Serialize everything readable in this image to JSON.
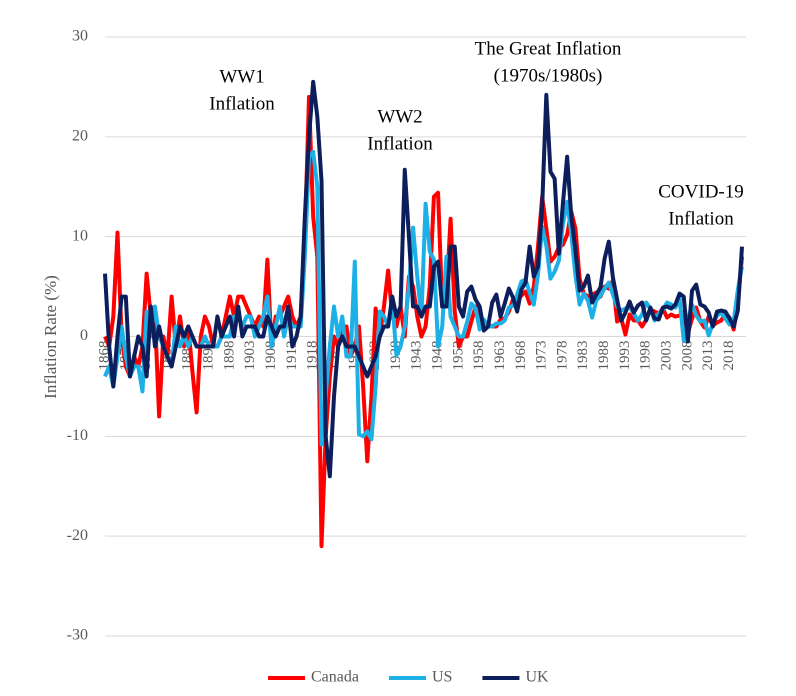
{
  "chart_data": {
    "type": "line",
    "y_label": "Inflation Rate (%)",
    "annotations": [
      [
        "WW1",
        "Inflation"
      ],
      [
        "WW2",
        "Inflation"
      ],
      [
        "The Great Inflation",
        "(1970s/1980s)"
      ],
      [
        "COVID-19",
        "Inflation"
      ]
    ],
    "x": [
      1868,
      1869,
      1870,
      1871,
      1872,
      1873,
      1874,
      1875,
      1876,
      1877,
      1878,
      1879,
      1880,
      1881,
      1882,
      1883,
      1884,
      1885,
      1886,
      1887,
      1888,
      1889,
      1890,
      1891,
      1892,
      1893,
      1894,
      1895,
      1896,
      1897,
      1898,
      1899,
      1900,
      1901,
      1902,
      1903,
      1904,
      1905,
      1906,
      1907,
      1908,
      1909,
      1910,
      1911,
      1912,
      1913,
      1914,
      1915,
      1916,
      1917,
      1918,
      1919,
      1920,
      1921,
      1922,
      1923,
      1924,
      1925,
      1926,
      1927,
      1928,
      1929,
      1930,
      1931,
      1932,
      1933,
      1934,
      1935,
      1936,
      1937,
      1938,
      1939,
      1940,
      1941,
      1942,
      1943,
      1944,
      1945,
      1946,
      1947,
      1948,
      1949,
      1950,
      1951,
      1952,
      1953,
      1954,
      1955,
      1956,
      1957,
      1958,
      1959,
      1960,
      1961,
      1962,
      1963,
      1964,
      1965,
      1966,
      1967,
      1968,
      1969,
      1970,
      1971,
      1972,
      1973,
      1974,
      1975,
      1976,
      1977,
      1978,
      1979,
      1980,
      1981,
      1982,
      1983,
      1984,
      1985,
      1986,
      1987,
      1988,
      1989,
      1990,
      1991,
      1992,
      1993,
      1994,
      1995,
      1996,
      1997,
      1998,
      1999,
      2000,
      2001,
      2002,
      2003,
      2004,
      2005,
      2006,
      2007,
      2008,
      2009,
      2010,
      2011,
      2012,
      2013,
      2014,
      2015,
      2016,
      2017,
      2018,
      2019,
      2020,
      2021
    ],
    "series": [
      {
        "name": "Canada",
        "color": "#ff0000",
        "values": [
          0,
          -1,
          2,
          10.4,
          0,
          -3,
          -4,
          -2,
          -3,
          -1,
          6.3,
          2,
          2,
          -8,
          0,
          -2,
          4,
          -1,
          2,
          -1,
          1,
          -3.5,
          -7.6,
          0,
          2,
          1,
          -1,
          -1,
          0,
          2,
          4,
          2,
          4,
          4,
          3,
          2,
          1,
          2,
          1,
          7.7,
          -1,
          2,
          2,
          3,
          4,
          2,
          1,
          2,
          10,
          24,
          12,
          8,
          -21,
          -10,
          -4,
          0,
          -1,
          1,
          1,
          -2,
          -1,
          1,
          -5,
          -12.5,
          -6,
          2.8,
          0,
          3,
          6.6,
          2,
          1,
          3,
          0,
          6,
          5,
          2,
          0,
          1,
          5,
          14,
          14.4,
          3,
          4,
          11.8,
          2.5,
          -1,
          0,
          0,
          1.5,
          3,
          2.5,
          1,
          1.2,
          1,
          1,
          1.7,
          1.8,
          2.5,
          3.7,
          3.6,
          4.1,
          4.5,
          3.3,
          5,
          9,
          14,
          10.8,
          7.5,
          8,
          8.9,
          9.2,
          10.2,
          12.5,
          10.8,
          5.8,
          4.3,
          4,
          4.2,
          4.4,
          4,
          5,
          4.8,
          5.6,
          1.5,
          1.8,
          0.2,
          2.2,
          1.6,
          1.6,
          1,
          1.7,
          2.7,
          2.5,
          2.3,
          2.8,
          1.9,
          2.2,
          2,
          2.1,
          2.4,
          0.3,
          1.8,
          2.9,
          1.5,
          0.9,
          2,
          1.1,
          1.4,
          1.6,
          2.3,
          1.9,
          0.7,
          3.4,
          8
        ]
      },
      {
        "name": "US",
        "color": "#1cb0e6",
        "values": [
          -4,
          -3,
          -5,
          -2,
          1,
          -2,
          -4,
          -3,
          -3,
          -5.5,
          2.5,
          0,
          3,
          0,
          -1,
          -2,
          -3,
          1,
          -1,
          0,
          -1,
          0,
          -1,
          -1,
          0,
          -1,
          -1,
          -1,
          0,
          0,
          0,
          2,
          2,
          1,
          2,
          2,
          0,
          1,
          2,
          4,
          -1,
          1,
          3,
          0,
          2,
          1,
          1,
          1,
          8,
          18,
          18.5,
          15,
          -10.8,
          -6,
          -1,
          3,
          0,
          2,
          -2,
          -2,
          7.5,
          -9.8,
          -10,
          -9.5,
          -10.3,
          -5,
          2.5,
          2,
          1,
          3.6,
          -1.9,
          -1,
          1,
          5,
          10.9,
          6,
          2,
          13.3,
          8.5,
          7.7,
          -1,
          1,
          8,
          2,
          1,
          0,
          0,
          1.5,
          3.3,
          2.8,
          0.7,
          1.7,
          1,
          1,
          1.3,
          1.3,
          1.6,
          2.9,
          3.1,
          4.2,
          5.5,
          5.7,
          4.4,
          3.2,
          6.2,
          11,
          9.1,
          5.8,
          6.5,
          7.6,
          11.3,
          13.5,
          10.3,
          6.1,
          3.2,
          4.3,
          3.6,
          1.9,
          3.6,
          4.1,
          4.8,
          5.4,
          4.2,
          3,
          2.6,
          2.8,
          3,
          2.3,
          1.6,
          2.2,
          3.4,
          2.8,
          1.6,
          2.3,
          2.7,
          3.4,
          3.2,
          2.9,
          3.8,
          -0.4,
          1.6,
          3.2,
          2.1,
          1.5,
          1.6,
          0.1,
          1.3,
          2.1,
          2.4,
          1.8,
          1.2,
          1.5,
          4.7,
          7
        ]
      },
      {
        "name": "UK",
        "color": "#0c1f5c",
        "values": [
          6.3,
          -1,
          -5,
          0,
          4,
          4,
          -4,
          -2,
          0,
          -1,
          -4,
          3,
          -1,
          1,
          -1,
          -2,
          -3,
          -1,
          1,
          0,
          1,
          0,
          -1,
          -1,
          -1,
          -1,
          -1,
          2,
          0,
          1,
          2,
          0,
          3,
          0,
          1,
          1,
          1,
          0,
          0,
          2,
          1,
          0,
          1,
          1,
          3,
          -1,
          0,
          2,
          12,
          20,
          25.5,
          22,
          15.6,
          -10,
          -14,
          -6,
          -1,
          0,
          -1,
          -1,
          -1,
          -2,
          -3,
          -4,
          -3,
          -2,
          0,
          1,
          1,
          4,
          2,
          3,
          16.7,
          10,
          3,
          3,
          2,
          3,
          3,
          7,
          7.5,
          3,
          3,
          9,
          9,
          3,
          2,
          4.5,
          5,
          3.7,
          3,
          0.6,
          1,
          3.4,
          4.2,
          2,
          3.3,
          4.8,
          3.9,
          2.5,
          4.7,
          5.4,
          9,
          6,
          7,
          13,
          24.2,
          16.5,
          15.8,
          8.3,
          13.4,
          18,
          12,
          8.6,
          4.6,
          5,
          6.1,
          3.4,
          4.2,
          4.9,
          7.8,
          9.5,
          5.9,
          3.7,
          1.6,
          2.4,
          3.5,
          2.4,
          3.1,
          3.4,
          1.6,
          2.9,
          1.8,
          1.7,
          2.9,
          3,
          2.8,
          3.2,
          4.3,
          4,
          -0.5,
          4.6,
          5.2,
          3.2,
          3,
          2.4,
          1,
          2.5,
          2.6,
          2.5,
          1.8,
          1,
          2.6,
          9
        ]
      }
    ],
    "xlim": [
      1868,
      2021
    ],
    "xticks": [
      1868,
      1873,
      1878,
      1883,
      1888,
      1893,
      1898,
      1903,
      1908,
      1913,
      1918,
      1923,
      1928,
      1933,
      1938,
      1943,
      1948,
      1953,
      1958,
      1963,
      1968,
      1973,
      1978,
      1983,
      1988,
      1993,
      1998,
      2003,
      2008,
      2013,
      2018
    ],
    "ylim": [
      -30,
      30
    ],
    "yticks": [
      -30,
      -20,
      -10,
      0,
      10,
      20,
      30
    ],
    "grid": true,
    "legend": "bottom"
  }
}
